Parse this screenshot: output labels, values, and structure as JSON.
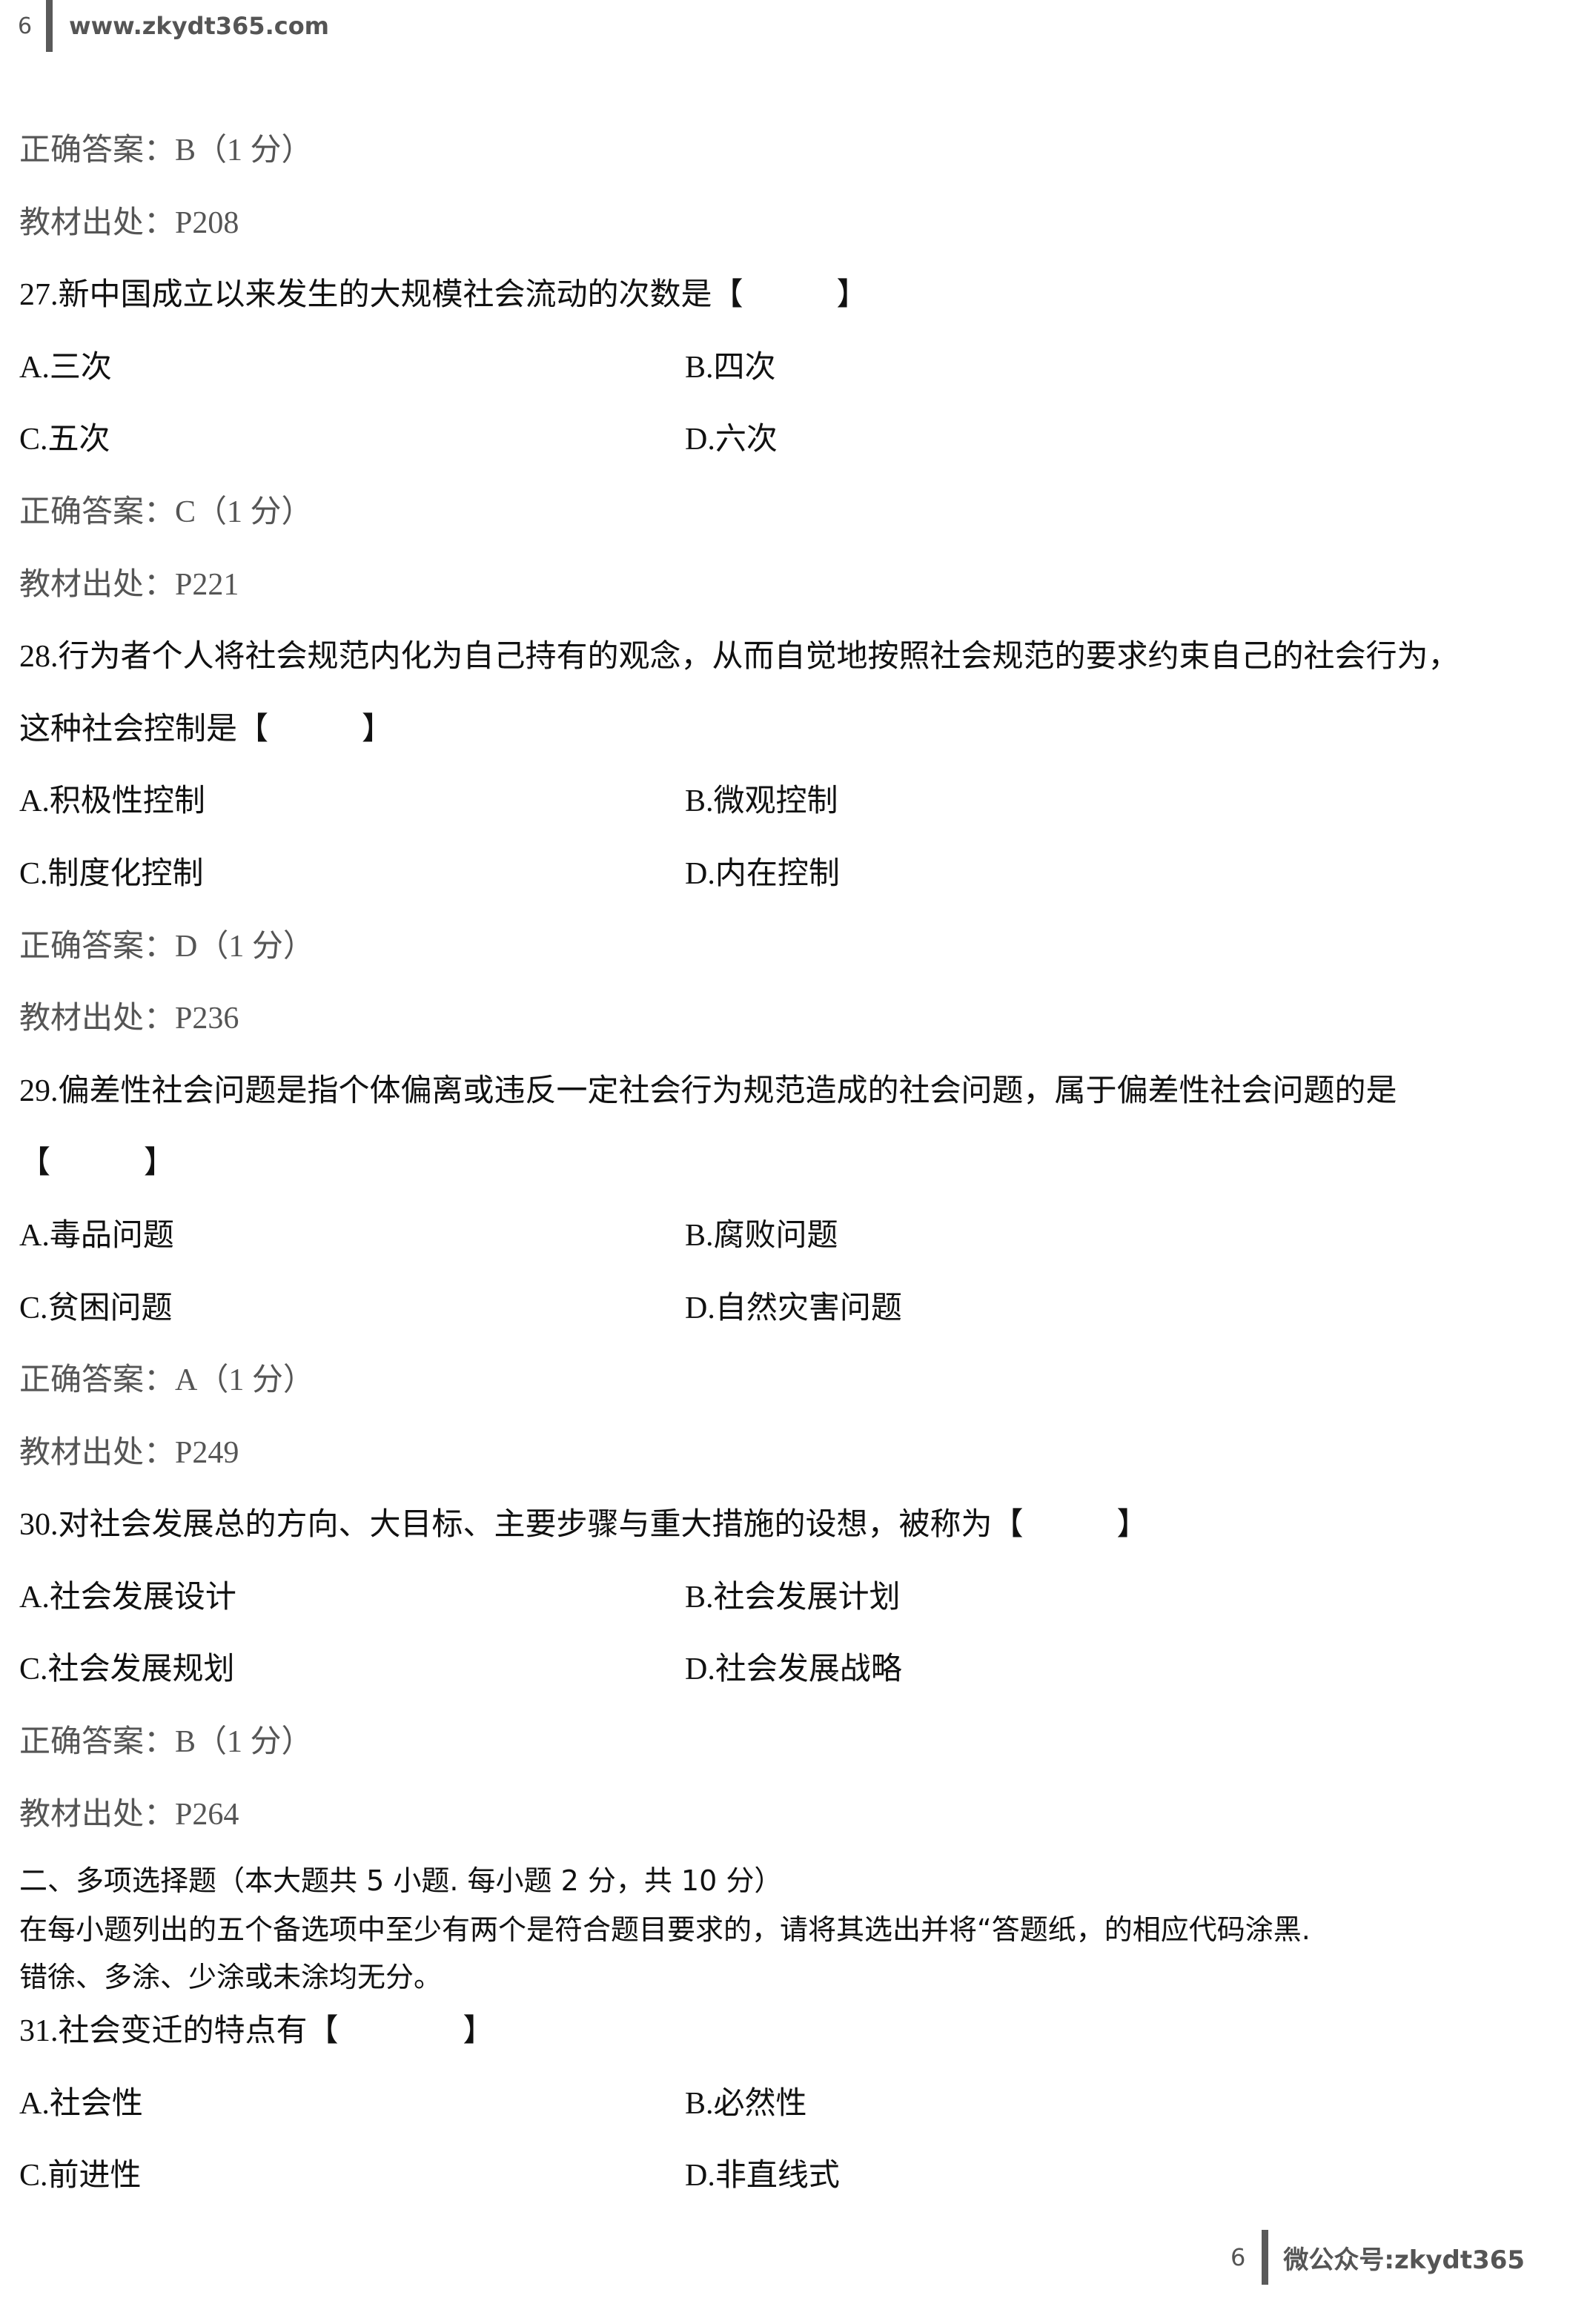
{
  "header": {
    "page_number": "6",
    "site": "www.zkydt365.com"
  },
  "lines": [
    {
      "answer": "正确答案：B（1 分）"
    },
    {
      "source": "教材出处：P208"
    },
    {
      "q27": "27.新中国成立以来发生的大规模社会流动的次数是【　　　】"
    },
    {
      "a": "A.三次",
      "b": "B.四次"
    },
    {
      "c": "C.五次",
      "d": "D.六次"
    },
    {
      "answer": "正确答案：C（1 分）"
    },
    {
      "source": "教材出处：P221"
    },
    {
      "q28a": "28.行为者个人将社会规范内化为自己持有的观念，从而自觉地按照社会规范的要求约束自己的社会行为，"
    },
    {
      "q28b": "这种社会控制是【　　　】"
    },
    {
      "a": "A.积极性控制",
      "b": "B.微观控制"
    },
    {
      "c": "C.制度化控制",
      "d": "D.内在控制"
    },
    {
      "answer": "正确答案：D（1 分）"
    },
    {
      "source": "教材出处：P236"
    },
    {
      "q29a": "29.偏差性社会问题是指个体偏离或违反一定社会行为规范造成的社会问题，属于偏差性社会问题的是"
    },
    {
      "q29b": "【　　　】"
    },
    {
      "a": "A.毒品问题",
      "b": "B.腐败问题"
    },
    {
      "c": "C.贫困问题",
      "d": "D.自然灾害问题"
    },
    {
      "answer": "正确答案：A（1 分）"
    },
    {
      "source": "教材出处：P249"
    },
    {
      "q30": "30.对社会发展总的方向、大目标、主要步骤与重大措施的设想，被称为【　　　】"
    },
    {
      "a": "A.社会发展设计",
      "b": "B.社会发展计划"
    },
    {
      "c": "C.社会发展规划",
      "d": "D.社会发展战略"
    },
    {
      "answer": "正确答案：B（1 分）"
    },
    {
      "source": "教材出处：P264"
    }
  ],
  "section": {
    "title": "二、多项选择题（本大题共 5 小题. 每小题 2 分，共 10 分）",
    "instruction_1": "在每小题列出的五个备选项中至少有两个是符合题目要求的，请将其选出并将“答题纸，的相应代码涂黑.",
    "instruction_2": "错徐、多涂、少涂或未涂均无分。"
  },
  "q31": {
    "stem": "31.社会变迁的特点有【　　　　】",
    "a": "A.社会性",
    "b": "B.必然性",
    "c": "C.前进性",
    "d": "D.非直线式"
  },
  "footer": {
    "page_number": "6",
    "wechat": "微公众号:zkydt365"
  }
}
